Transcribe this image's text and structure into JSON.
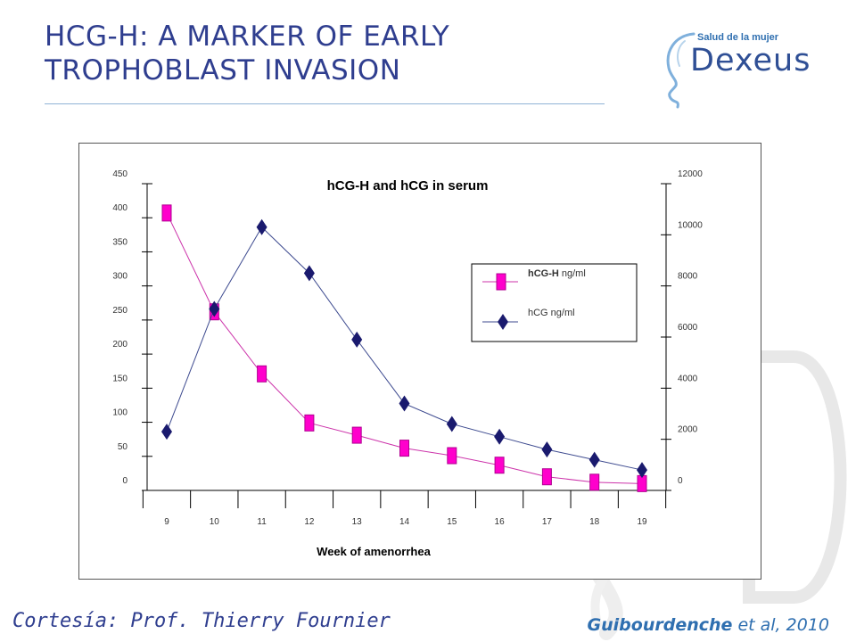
{
  "slide": {
    "title_line1": "HCG-H: A MARKER OF EARLY",
    "title_line2": "TROPHOBLAST INVASION",
    "logo_tagline": "Salud de la mujer",
    "logo_word": "Dexeus",
    "footer_left": "Cortesía: Prof. Thierry  Fournier",
    "footer_right_name": "Guibourdenche",
    "footer_right_rest": " et al, 2010"
  },
  "colors": {
    "title": "#2f3e8f",
    "hcgh": "#ff00cc",
    "hcg": "#1a1a6e",
    "line_hcgh": "#cc33aa",
    "line_hcg": "#3d4a8f"
  },
  "chart_data": {
    "type": "line",
    "title": "hCG-H and hCG in serum",
    "xlabel": "Week of amenorrhea",
    "x": [
      9,
      10,
      11,
      12,
      13,
      14,
      15,
      16,
      17,
      18,
      19
    ],
    "x_tick_labels": [
      "9",
      "10",
      "11",
      "12",
      "13",
      "14",
      "15",
      "16",
      "17",
      "18",
      "19"
    ],
    "y_left": {
      "min": 0,
      "max": 450,
      "ticks": [
        "0",
        "50",
        "100",
        "150",
        "200",
        "250",
        "300",
        "350",
        "400",
        "450"
      ]
    },
    "y_right": {
      "min": 0,
      "max": 12000,
      "ticks": [
        "0",
        "2000",
        "4000",
        "6000",
        "8000",
        "10000",
        "12000"
      ]
    },
    "series": [
      {
        "name": "hCG-H ng/ml",
        "legend_bold": "hCG-H",
        "legend_rest": " ng/ml",
        "axis": "left",
        "marker": "square",
        "values": [
          407,
          262,
          171,
          99,
          81,
          62,
          51,
          37,
          20,
          12,
          10
        ]
      },
      {
        "name": "hCG ng/ml",
        "axis": "right",
        "marker": "diamond",
        "values": [
          2300,
          7100,
          10300,
          8500,
          5900,
          3400,
          2600,
          2100,
          1600,
          1200,
          800
        ]
      }
    ],
    "legend_position": "upper-right",
    "grid": false
  }
}
